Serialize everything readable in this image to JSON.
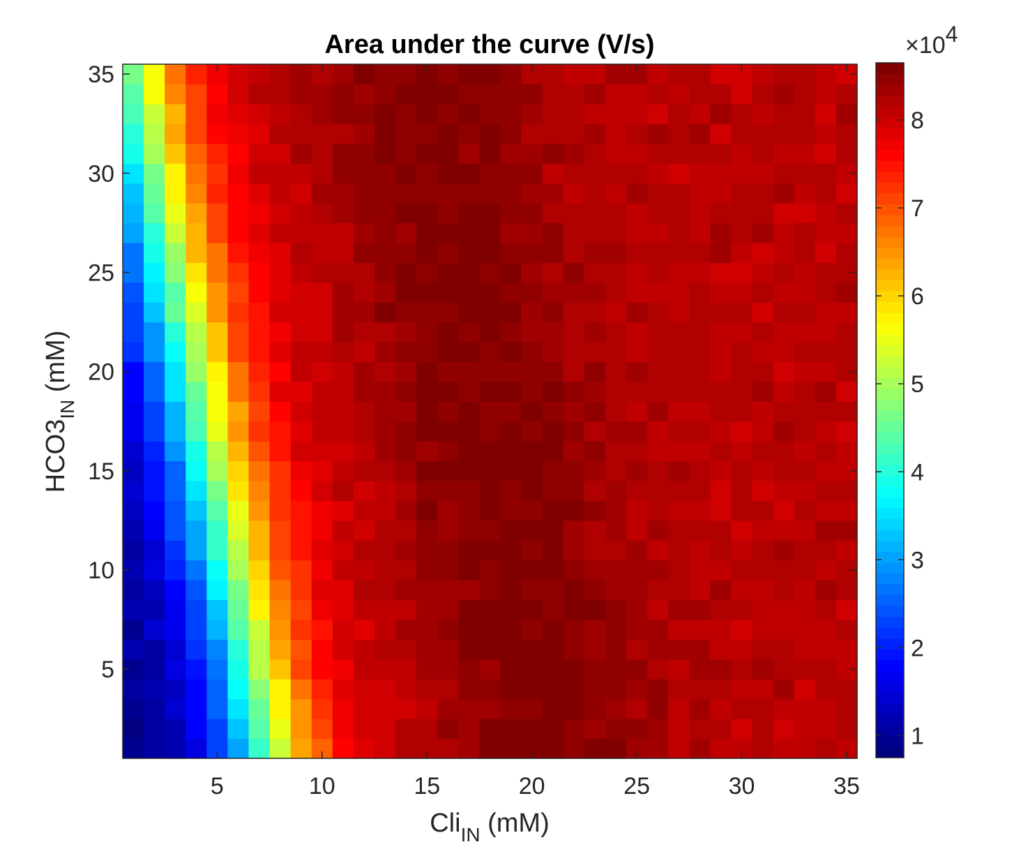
{
  "chart_data": {
    "type": "heatmap",
    "title": "Area under the curve (V/s)",
    "xlabel": {
      "main": "Cli",
      "sub": "IN",
      "unit": " (mM)"
    },
    "ylabel": {
      "main": "HCO3",
      "sub": "IN",
      "unit": " (mM)"
    },
    "x_range": [
      1,
      35
    ],
    "y_range": [
      1,
      35
    ],
    "x_ticks": [
      5,
      10,
      15,
      20,
      25,
      30,
      35
    ],
    "y_ticks": [
      5,
      10,
      15,
      20,
      25,
      30,
      35
    ],
    "x_tick_labels": [
      "5",
      "10",
      "15",
      "20",
      "25",
      "30",
      "35"
    ],
    "y_tick_labels": [
      "5",
      "10",
      "15",
      "20",
      "25",
      "30",
      "35"
    ],
    "grid_size": 35,
    "value_model": "value rises steeply from about 0.8e4 at low Cli_IN to a plateau near 8.2e4-8.6e4; the transition shifts to lower Cli_IN as HCO3_IN increases (about Cli 13 at HCO3 1, about Cli 7 at HCO3 35); darkest maximum band around Cli 15-23",
    "colorbar": {
      "colormap": "jet",
      "range": [
        7500,
        86500
      ],
      "ticks": [
        10000,
        20000,
        30000,
        40000,
        50000,
        60000,
        70000,
        80000
      ],
      "tick_labels": [
        "1",
        "2",
        "3",
        "4",
        "5",
        "6",
        "7",
        "8"
      ],
      "multiplier_base": "×10",
      "multiplier_exp": "4"
    },
    "grid": false
  }
}
